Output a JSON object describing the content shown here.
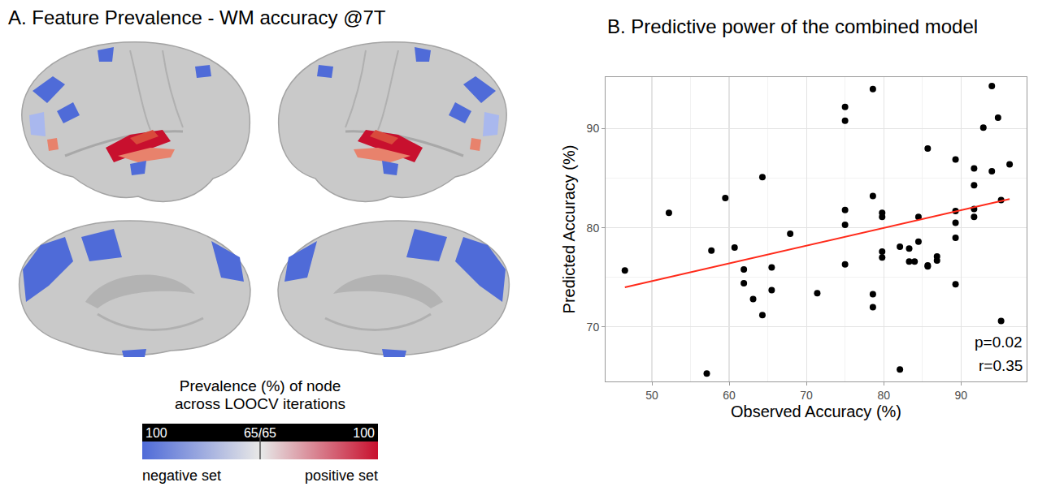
{
  "panel_a": {
    "title": "A. Feature Prevalence - WM accuracy @7T",
    "colorbar": {
      "title_lines": [
        "Prevalence (%) of node",
        "across LOOCV iterations"
      ],
      "center_label": "65/65",
      "negative_set": {
        "label": "negative set",
        "from": 100,
        "to": 65,
        "color": "#4f6bd8"
      },
      "positive_set": {
        "label": "positive set",
        "from": 65,
        "to": 100,
        "color": "#c8102e"
      }
    }
  },
  "chart_data": {
    "type": "scatter",
    "title": "B. Predictive power of the combined model",
    "x_label": "Observed Accuracy (%)",
    "y_label": "Predicted Accuracy (%)",
    "xlim": [
      44,
      98.5
    ],
    "ylim": [
      64.5,
      95.2
    ],
    "xticks": [
      50,
      60,
      70,
      80,
      90
    ],
    "yticks": [
      70,
      80,
      90
    ],
    "grid": true,
    "annotations": [
      "p=0.02",
      "r=0.35"
    ],
    "series": [
      {
        "type": "scatter",
        "marker": "circle",
        "color": "#000000",
        "x": [
          46.5,
          52.2,
          57.1,
          57.7,
          59.5,
          60.7,
          61.9,
          61.9,
          63.1,
          64.3,
          64.3,
          65.5,
          65.5,
          67.9,
          71.4,
          75.0,
          75.0,
          75.0,
          75.0,
          75.0,
          78.6,
          78.6,
          78.6,
          78.6,
          79.8,
          79.8,
          79.8,
          79.8,
          82.1,
          82.1,
          83.3,
          83.3,
          84.0,
          84.5,
          84.5,
          85.7,
          85.7,
          85.7,
          86.9,
          86.9,
          89.3,
          89.3,
          89.3,
          89.3,
          89.3,
          91.7,
          91.7,
          91.7,
          91.7,
          92.9,
          94.0,
          94.0,
          94.8,
          95.2,
          95.2,
          96.3
        ],
        "values": [
          75.7,
          81.5,
          65.3,
          77.7,
          83.0,
          78.0,
          75.8,
          74.4,
          72.8,
          71.2,
          85.1,
          76.0,
          73.7,
          79.4,
          73.4,
          92.2,
          90.8,
          81.8,
          80.3,
          76.3,
          94.0,
          83.2,
          73.3,
          72.0,
          81.5,
          81.1,
          77.6,
          77.0,
          65.7,
          78.1,
          77.9,
          76.6,
          76.6,
          81.1,
          78.6,
          88.0,
          76.2,
          76.1,
          77.1,
          76.7,
          86.9,
          81.7,
          80.5,
          79.0,
          74.3,
          86.0,
          84.3,
          81.9,
          81.1,
          90.1,
          94.3,
          85.7,
          91.1,
          82.8,
          70.6,
          86.4
        ]
      },
      {
        "type": "line",
        "line_style": "solid",
        "color": "#ff2a1a",
        "x": [
          46.5,
          96.3
        ],
        "values": [
          74.0,
          82.9
        ]
      }
    ]
  }
}
